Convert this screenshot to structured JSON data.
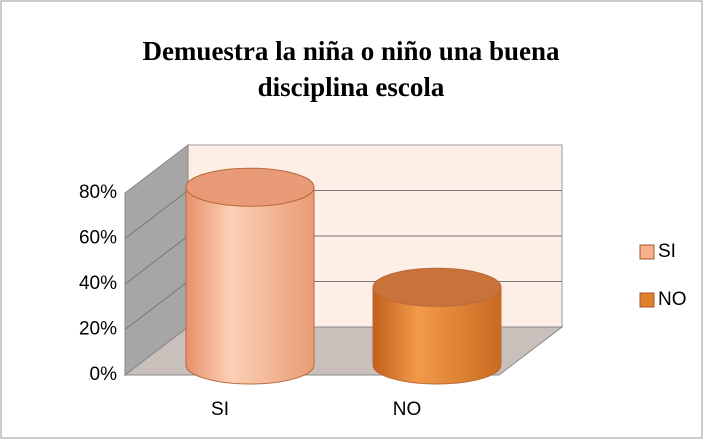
{
  "chart_data": {
    "type": "bar3d_cylinder",
    "title_lines": [
      "Demuestra la niña o niño una buena",
      "disciplina escola"
    ],
    "categories": [
      "SI",
      "NO"
    ],
    "series": [
      {
        "name": "SI",
        "color": "#f8b08a",
        "values": [
          72,
          null
        ]
      },
      {
        "name": "NO",
        "color": "#e07f2c",
        "values": [
          null,
          28
        ]
      }
    ],
    "ylim": [
      0,
      80
    ],
    "yticks": [
      {
        "value": 0,
        "label": "0%"
      },
      {
        "value": 20,
        "label": "20%"
      },
      {
        "value": 40,
        "label": "40%"
      },
      {
        "value": 60,
        "label": "60%"
      },
      {
        "value": 80,
        "label": "80%"
      }
    ],
    "grid": true,
    "legend": "right"
  }
}
